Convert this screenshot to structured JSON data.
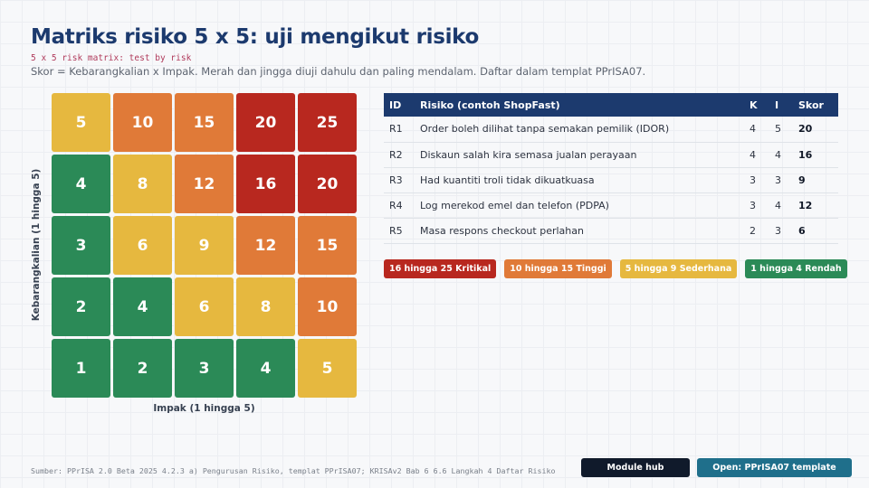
{
  "header": {
    "title": "Matriks risiko 5 x 5: uji mengikut risiko",
    "subtitle": "5 x 5 risk matrix: test by risk",
    "description": "Skor = Kebarangkalian x Impak. Merah dan jingga diuji dahulu dan paling mendalam. Daftar dalam templat PPrISA07."
  },
  "matrix": {
    "y_label": "Kebarangkalian (1 hingga 5)",
    "x_label": "Impak (1 hingga 5)",
    "rows": [
      [
        {
          "v": "5",
          "level": "medium"
        },
        {
          "v": "10",
          "level": "high"
        },
        {
          "v": "15",
          "level": "high"
        },
        {
          "v": "20",
          "level": "critical"
        },
        {
          "v": "25",
          "level": "critical"
        }
      ],
      [
        {
          "v": "4",
          "level": "low"
        },
        {
          "v": "8",
          "level": "medium"
        },
        {
          "v": "12",
          "level": "high"
        },
        {
          "v": "16",
          "level": "critical"
        },
        {
          "v": "20",
          "level": "critical"
        }
      ],
      [
        {
          "v": "3",
          "level": "low"
        },
        {
          "v": "6",
          "level": "medium"
        },
        {
          "v": "9",
          "level": "medium"
        },
        {
          "v": "12",
          "level": "high"
        },
        {
          "v": "15",
          "level": "high"
        }
      ],
      [
        {
          "v": "2",
          "level": "low"
        },
        {
          "v": "4",
          "level": "low"
        },
        {
          "v": "6",
          "level": "medium"
        },
        {
          "v": "8",
          "level": "medium"
        },
        {
          "v": "10",
          "level": "high"
        }
      ],
      [
        {
          "v": "1",
          "level": "low"
        },
        {
          "v": "2",
          "level": "low"
        },
        {
          "v": "3",
          "level": "low"
        },
        {
          "v": "4",
          "level": "low"
        },
        {
          "v": "5",
          "level": "medium"
        }
      ]
    ]
  },
  "colors": {
    "critical": "#b8281f",
    "high": "#e07a38",
    "medium": "#e6b83f",
    "low": "#2b8a57"
  },
  "table": {
    "headers": {
      "id": "ID",
      "risk": "Risiko (contoh ShopFast)",
      "k": "K",
      "i": "I",
      "score": "Skor"
    },
    "rows": [
      {
        "id": "R1",
        "risk": "Order boleh dilihat tanpa semakan pemilik (IDOR)",
        "k": "4",
        "i": "5",
        "score": "20"
      },
      {
        "id": "R2",
        "risk": "Diskaun salah kira semasa jualan perayaan",
        "k": "4",
        "i": "4",
        "score": "16"
      },
      {
        "id": "R3",
        "risk": "Had kuantiti troli tidak dikuatkuasa",
        "k": "3",
        "i": "3",
        "score": "9"
      },
      {
        "id": "R4",
        "risk": "Log merekod emel dan telefon (PDPA)",
        "k": "3",
        "i": "4",
        "score": "12"
      },
      {
        "id": "R5",
        "risk": "Masa respons checkout perlahan",
        "k": "2",
        "i": "3",
        "score": "6"
      }
    ]
  },
  "legend": [
    {
      "label": "16 hingga 25 Kritikal",
      "level": "critical"
    },
    {
      "label": "10 hingga 15 Tinggi",
      "level": "high"
    },
    {
      "label": "5 hingga 9 Sederhana",
      "level": "medium"
    },
    {
      "label": "1 hingga 4 Rendah",
      "level": "low"
    }
  ],
  "footer": {
    "source": "Sumber: PPrISA 2.0 Beta 2025 4.2.3 a) Pengurusan Risiko, templat PPrISA07; KRISAv2 Bab 6 6.6 Langkah 4 Daftar Risiko",
    "hub_button": "Module hub",
    "open_button": "Open: PPrISA07 template"
  }
}
